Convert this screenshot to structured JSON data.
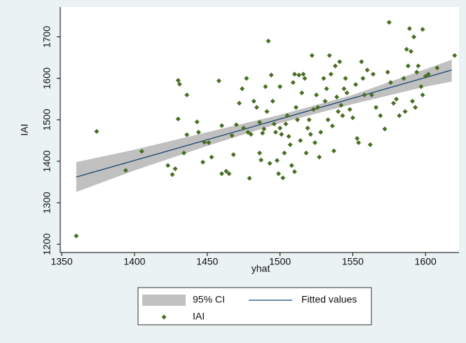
{
  "chart_data": {
    "type": "scatter",
    "x_label": "yhat",
    "y_label": "IAI",
    "xlim": [
      1349,
      1623
    ],
    "ylim": [
      1180,
      1772
    ],
    "xticks": [
      1350,
      1400,
      1450,
      1500,
      1550,
      1600
    ],
    "yticks": [
      1200,
      1300,
      1400,
      1500,
      1600,
      1700
    ],
    "grid": false,
    "legend": "bottom",
    "series": [
      {
        "name": "95% CI",
        "type": "band",
        "color": "#c0c0c0",
        "x": [
          1360,
          1400,
          1450,
          1500,
          1550,
          1600,
          1618
        ],
        "lower": [
          1326,
          1378,
          1437,
          1492,
          1538,
          1580,
          1592
        ],
        "upper": [
          1398,
          1428,
          1470,
          1512,
          1560,
          1622,
          1645
        ]
      },
      {
        "name": "Fitted values",
        "type": "line",
        "color": "#1a476f",
        "x": [
          1360,
          1618
        ],
        "values": [
          1362,
          1620
        ]
      },
      {
        "name": "IAI",
        "type": "scatter",
        "color": "#4a6e24",
        "x": [
          1360,
          1374,
          1394,
          1405,
          1423,
          1426,
          1428,
          1430,
          1430,
          1431,
          1434,
          1436,
          1436,
          1443,
          1444,
          1447,
          1448,
          1451,
          1453,
          1458,
          1460,
          1460,
          1463,
          1465,
          1467,
          1468,
          1470,
          1472,
          1474,
          1475,
          1477,
          1478,
          1479,
          1480,
          1482,
          1484,
          1486,
          1486,
          1487,
          1488,
          1489,
          1490,
          1491,
          1492,
          1493,
          1494,
          1495,
          1496,
          1497,
          1498,
          1499,
          1500,
          1500,
          1501,
          1502,
          1503,
          1504,
          1505,
          1506,
          1507,
          1508,
          1509,
          1510,
          1510,
          1511,
          1512,
          1513,
          1514,
          1515,
          1516,
          1517,
          1518,
          1519,
          1520,
          1521,
          1522,
          1523,
          1524,
          1525,
          1526,
          1527,
          1528,
          1530,
          1531,
          1532,
          1533,
          1534,
          1535,
          1536,
          1537,
          1538,
          1539,
          1540,
          1541,
          1542,
          1543,
          1544,
          1545,
          1546,
          1548,
          1550,
          1552,
          1553,
          1554,
          1556,
          1557,
          1558,
          1560,
          1562,
          1563,
          1564,
          1566,
          1569,
          1572,
          1574,
          1575,
          1576,
          1578,
          1580,
          1582,
          1585,
          1586,
          1587,
          1588,
          1589,
          1590,
          1591,
          1592,
          1593,
          1594,
          1595,
          1597,
          1598,
          1598,
          1600,
          1602,
          1608,
          1620
        ],
        "values": [
          1220,
          1472,
          1378,
          1424,
          1390,
          1368,
          1382,
          1502,
          1595,
          1586,
          1420,
          1560,
          1464,
          1495,
          1470,
          1398,
          1446,
          1445,
          1410,
          1594,
          1486,
          1370,
          1376,
          1370,
          1462,
          1416,
          1488,
          1540,
          1575,
          1480,
          1600,
          1470,
          1359,
          1465,
          1545,
          1530,
          1494,
          1420,
          1403,
          1468,
          1478,
          1580,
          1520,
          1690,
          1395,
          1608,
          1545,
          1490,
          1470,
          1402,
          1370,
          1580,
          1480,
          1465,
          1360,
          1420,
          1490,
          1510,
          1460,
          1440,
          1390,
          1590,
          1610,
          1375,
          1530,
          1500,
          1608,
          1450,
          1565,
          1610,
          1600,
          1420,
          1480,
          1500,
          1465,
          1655,
          1525,
          1445,
          1560,
          1530,
          1410,
          1470,
          1600,
          1545,
          1575,
          1500,
          1655,
          1610,
          1485,
          1425,
          1630,
          1555,
          1520,
          1640,
          1535,
          1510,
          1575,
          1600,
          1565,
          1525,
          1505,
          1585,
          1455,
          1445,
          1640,
          1600,
          1560,
          1620,
          1440,
          1560,
          1610,
          1530,
          1510,
          1478,
          1615,
          1735,
          1590,
          1540,
          1550,
          1510,
          1600,
          1520,
          1670,
          1630,
          1720,
          1665,
          1545,
          1700,
          1530,
          1615,
          1630,
          1580,
          1560,
          1718,
          1605,
          1610,
          1625,
          1655
        ]
      }
    ]
  }
}
